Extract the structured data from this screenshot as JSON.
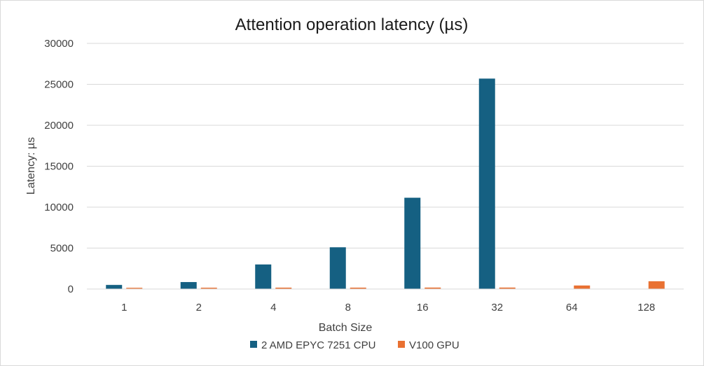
{
  "chart_data": {
    "type": "bar",
    "title": "Attention operation latency (µs)",
    "xlabel": "Batch Size",
    "ylabel": "Latency: µs",
    "categories": [
      "1",
      "2",
      "4",
      "8",
      "16",
      "32",
      "64",
      "128"
    ],
    "ylim": [
      0,
      30000
    ],
    "yticks": [
      0,
      5000,
      10000,
      15000,
      20000,
      25000,
      30000
    ],
    "grid": true,
    "legend_position": "bottom",
    "series": [
      {
        "name": "2 AMD EPYC 7251 CPU",
        "color": "#156082",
        "values": [
          500,
          850,
          3000,
          5100,
          11150,
          25700,
          null,
          null
        ]
      },
      {
        "name": "V100 GPU",
        "color": "#e97132",
        "values": [
          150,
          160,
          170,
          170,
          180,
          180,
          430,
          950
        ]
      }
    ]
  }
}
